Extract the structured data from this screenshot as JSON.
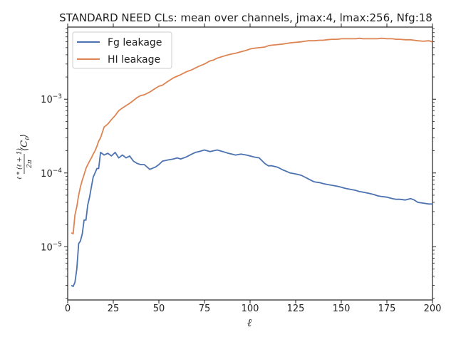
{
  "chart_data": {
    "type": "line",
    "title": "STANDARD NEED CLs: mean over channels, jmax:4, lmax:256, Nfg:18",
    "xlabel": "ℓ",
    "ylabel_numerator": "ℓ * (ℓ + 1)",
    "ylabel_denominator": "2π",
    "ylabel_suffix": "⟨C",
    "ylabel_sub": "ℓ",
    "ylabel_close": "⟩",
    "xlim": [
      0,
      200
    ],
    "ylim": [
      1.9e-06,
      0.0095
    ],
    "yscale": "log",
    "grid": false,
    "legend_position": "upper-left",
    "xticks": [
      {
        "value": 0,
        "label": "0"
      },
      {
        "value": 25,
        "label": "25"
      },
      {
        "value": 50,
        "label": "50"
      },
      {
        "value": 75,
        "label": "75"
      },
      {
        "value": 100,
        "label": "100"
      },
      {
        "value": 125,
        "label": "125"
      },
      {
        "value": 150,
        "label": "150"
      },
      {
        "value": 175,
        "label": "175"
      },
      {
        "value": 200,
        "label": "200"
      }
    ],
    "yticks": [
      {
        "value": 1e-05,
        "label": "10",
        "exp": "−5"
      },
      {
        "value": 0.0001,
        "label": "10",
        "exp": "−4"
      },
      {
        "value": 0.001,
        "label": "10",
        "exp": "−3"
      }
    ],
    "series": [
      {
        "name": "Fg leakage",
        "color": "#4c72b0",
        "x": [
          2,
          3,
          4,
          5,
          6,
          7,
          8,
          9,
          10,
          11,
          12,
          13,
          14,
          15,
          16,
          17,
          18,
          20,
          22,
          24,
          26,
          28,
          30,
          32,
          34,
          36,
          38,
          40,
          42,
          45,
          48,
          50,
          52,
          55,
          58,
          60,
          62,
          65,
          68,
          70,
          72,
          75,
          78,
          80,
          82,
          85,
          88,
          90,
          92,
          95,
          98,
          100,
          102,
          105,
          108,
          110,
          112,
          115,
          118,
          120,
          122,
          125,
          128,
          130,
          132,
          135,
          138,
          140,
          142,
          145,
          148,
          150,
          152,
          155,
          158,
          160,
          162,
          165,
          168,
          170,
          172,
          175,
          178,
          180,
          182,
          185,
          188,
          190,
          192,
          195,
          198,
          200
        ],
        "y": [
          3e-06,
          2.9e-06,
          3.3e-06,
          5e-06,
          1.1e-05,
          1.2e-05,
          1.5e-05,
          2.3e-05,
          2.3e-05,
          3.7e-05,
          4.7e-05,
          6.5e-05,
          8.8e-05,
          0.0001,
          0.000115,
          0.000115,
          0.00019,
          0.000175,
          0.000185,
          0.00017,
          0.00019,
          0.00016,
          0.000175,
          0.00016,
          0.00017,
          0.000145,
          0.000135,
          0.00013,
          0.00013,
          0.000112,
          0.00012,
          0.00013,
          0.000145,
          0.00015,
          0.000155,
          0.00016,
          0.000155,
          0.000165,
          0.00018,
          0.00019,
          0.000195,
          0.000205,
          0.000195,
          0.0002,
          0.000205,
          0.000195,
          0.000185,
          0.00018,
          0.000175,
          0.00018,
          0.000175,
          0.00017,
          0.000165,
          0.00016,
          0.000135,
          0.000125,
          0.000125,
          0.00012,
          0.00011,
          0.000105,
          0.0001,
          9.7e-05,
          9.3e-05,
          8.8e-05,
          8.3e-05,
          7.6e-05,
          7.4e-05,
          7.2e-05,
          7e-05,
          6.8e-05,
          6.6e-05,
          6.4e-05,
          6.2e-05,
          6e-05,
          5.8e-05,
          5.6e-05,
          5.5e-05,
          5.3e-05,
          5.1e-05,
          4.9e-05,
          4.8e-05,
          4.7e-05,
          4.5e-05,
          4.4e-05,
          4.4e-05,
          4.3e-05,
          4.5e-05,
          4.3e-05,
          4e-05,
          3.9e-05,
          3.8e-05,
          3.8e-05
        ]
      },
      {
        "name": "HI leakage",
        "color": "#dd8452",
        "x": [
          2,
          3,
          4,
          5,
          6,
          7,
          8,
          9,
          10,
          11,
          12,
          13,
          14,
          15,
          16,
          17,
          18,
          20,
          22,
          24,
          26,
          28,
          30,
          32,
          34,
          36,
          38,
          40,
          42,
          45,
          48,
          50,
          52,
          55,
          58,
          60,
          62,
          65,
          68,
          70,
          72,
          75,
          78,
          80,
          82,
          85,
          88,
          90,
          92,
          95,
          98,
          100,
          102,
          105,
          108,
          110,
          112,
          115,
          118,
          120,
          122,
          125,
          128,
          130,
          132,
          135,
          138,
          140,
          142,
          145,
          148,
          150,
          152,
          155,
          158,
          160,
          162,
          165,
          168,
          170,
          172,
          175,
          178,
          180,
          182,
          185,
          188,
          190,
          192,
          195,
          198,
          200
        ],
        "y": [
          1.55e-05,
          1.5e-05,
          2.7e-05,
          3.5e-05,
          5e-05,
          6.5e-05,
          8e-05,
          9.5e-05,
          0.000115,
          0.00013,
          0.000145,
          0.00016,
          0.00018,
          0.0002,
          0.00023,
          0.00027,
          0.0003,
          0.00042,
          0.00046,
          0.00053,
          0.0006,
          0.0007,
          0.00076,
          0.00082,
          0.00088,
          0.00096,
          0.00105,
          0.00112,
          0.00115,
          0.00125,
          0.0014,
          0.0015,
          0.00155,
          0.00175,
          0.00195,
          0.00205,
          0.00215,
          0.00235,
          0.0025,
          0.00265,
          0.0028,
          0.003,
          0.0033,
          0.0034,
          0.0036,
          0.0038,
          0.004,
          0.0041,
          0.0042,
          0.0044,
          0.0046,
          0.0048,
          0.0049,
          0.005,
          0.0051,
          0.0053,
          0.0054,
          0.0055,
          0.0056,
          0.0057,
          0.0058,
          0.0059,
          0.006,
          0.0061,
          0.0062,
          0.0062,
          0.0063,
          0.0063,
          0.0064,
          0.0065,
          0.0065,
          0.0066,
          0.0066,
          0.0066,
          0.0066,
          0.0067,
          0.0066,
          0.0066,
          0.0066,
          0.0066,
          0.0067,
          0.0066,
          0.0066,
          0.0065,
          0.0065,
          0.0064,
          0.0064,
          0.0063,
          0.0062,
          0.0061,
          0.0062,
          0.006
        ]
      }
    ]
  }
}
